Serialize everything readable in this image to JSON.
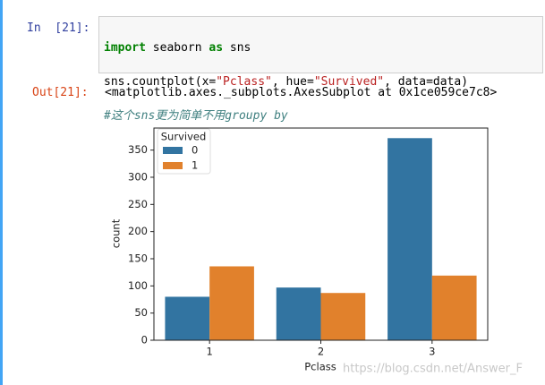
{
  "cell": {
    "prompt_in": "In  [21]:",
    "code": [
      [
        "import",
        " seaborn ",
        "as",
        " sns"
      ],
      [
        "sns.countplot(x=",
        "\"Pclass\"",
        ", hue=",
        "\"Survived\"",
        ", data=data)"
      ],
      [
        "#这个sns更为简单不用groupy by"
      ]
    ],
    "prompt_out": "Out[21]:",
    "output": "<matplotlib.axes._subplots.AxesSubplot at 0x1ce059ce7c8>"
  },
  "watermark": "https://blog.csdn.net/Answer_F",
  "chart_data": {
    "type": "bar",
    "x_label": "Pclass",
    "y_label": "count",
    "categories": [
      "1",
      "2",
      "3"
    ],
    "legend_title": "Survived",
    "legend": "upper left",
    "series": [
      {
        "name": "0",
        "color": "#3274a1",
        "values": [
          80,
          97,
          372
        ]
      },
      {
        "name": "1",
        "color": "#e1812c",
        "values": [
          136,
          87,
          119
        ]
      }
    ],
    "ylim": [
      0,
      390.6
    ],
    "yticks": [
      0,
      50,
      100,
      150,
      200,
      250,
      300,
      350
    ]
  }
}
